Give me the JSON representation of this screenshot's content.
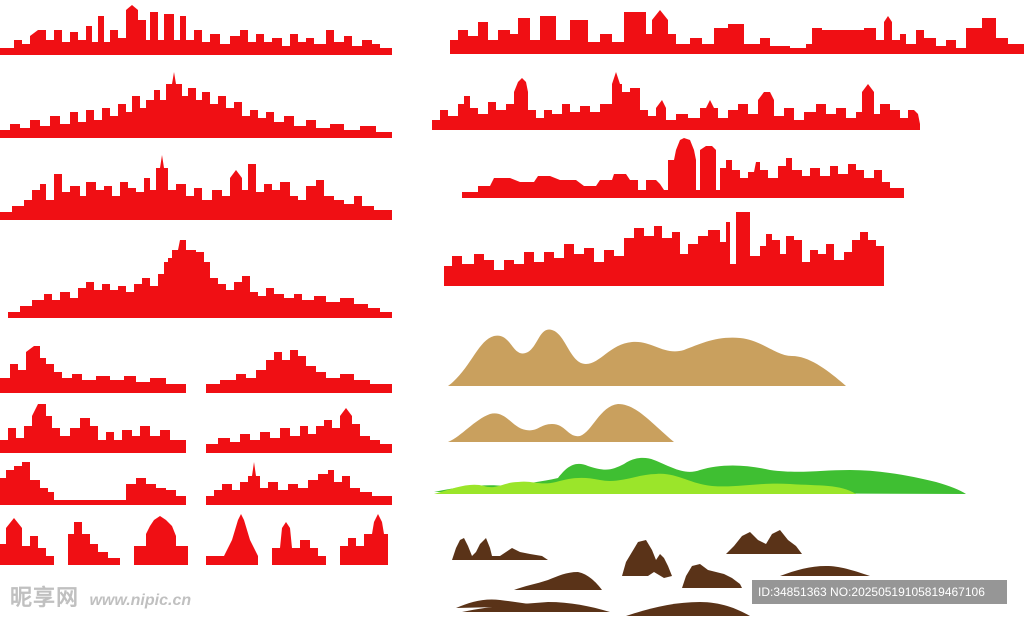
{
  "watermark": {
    "brand": "昵享网",
    "url": "www.nipic.cn",
    "id_text": "ID:34851363 NO:20250519105819467106"
  },
  "colors": {
    "skyline_red": "#f00f14",
    "mountain_tan": "#c9a05e",
    "hill_green_dark": "#3fbf32",
    "hill_green_light": "#9be52a",
    "rock_brown": "#5a3318"
  }
}
